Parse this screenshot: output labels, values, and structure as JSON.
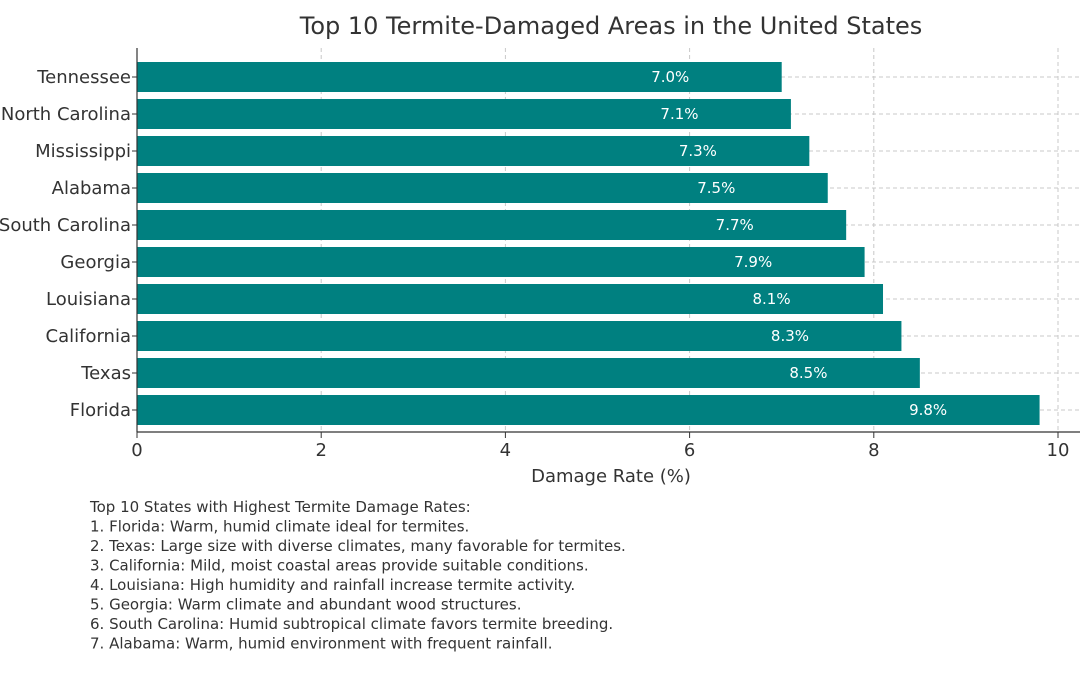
{
  "chart_data": {
    "type": "bar",
    "orientation": "horizontal",
    "title": "Top 10 Termite-Damaged Areas in the United States",
    "xlabel": "Damage Rate (%)",
    "ylabel": "",
    "xlim": [
      0,
      10.24
    ],
    "xticks": [
      "0",
      "2",
      "4",
      "6",
      "8",
      "10"
    ],
    "grid": true,
    "bar_color": "#008080",
    "categories": [
      "Florida",
      "Texas",
      "California",
      "Louisiana",
      "Georgia",
      "South Carolina",
      "Alabama",
      "Mississippi",
      "North Carolina",
      "Tennessee"
    ],
    "values": [
      9.8,
      8.5,
      8.3,
      8.1,
      7.9,
      7.7,
      7.5,
      7.3,
      7.1,
      7.0
    ],
    "data_labels": [
      "9.8%",
      "8.5%",
      "8.3%",
      "8.1%",
      "7.9%",
      "7.7%",
      "7.5%",
      "7.3%",
      "7.1%",
      "7.0%"
    ],
    "annotation": [
      "Top 10 States with Highest Termite Damage Rates:",
      "1. Florida: Warm, humid climate ideal for termites.",
      "2. Texas: Large size with diverse climates, many favorable for termites.",
      "3. California: Mild, moist coastal areas provide suitable conditions.",
      "4. Louisiana: High humidity and rainfall increase termite activity.",
      "5. Georgia: Warm climate and abundant wood structures.",
      "6. South Carolina: Humid subtropical climate favors termite breeding.",
      "7. Alabama: Warm, humid environment with frequent rainfall."
    ]
  }
}
